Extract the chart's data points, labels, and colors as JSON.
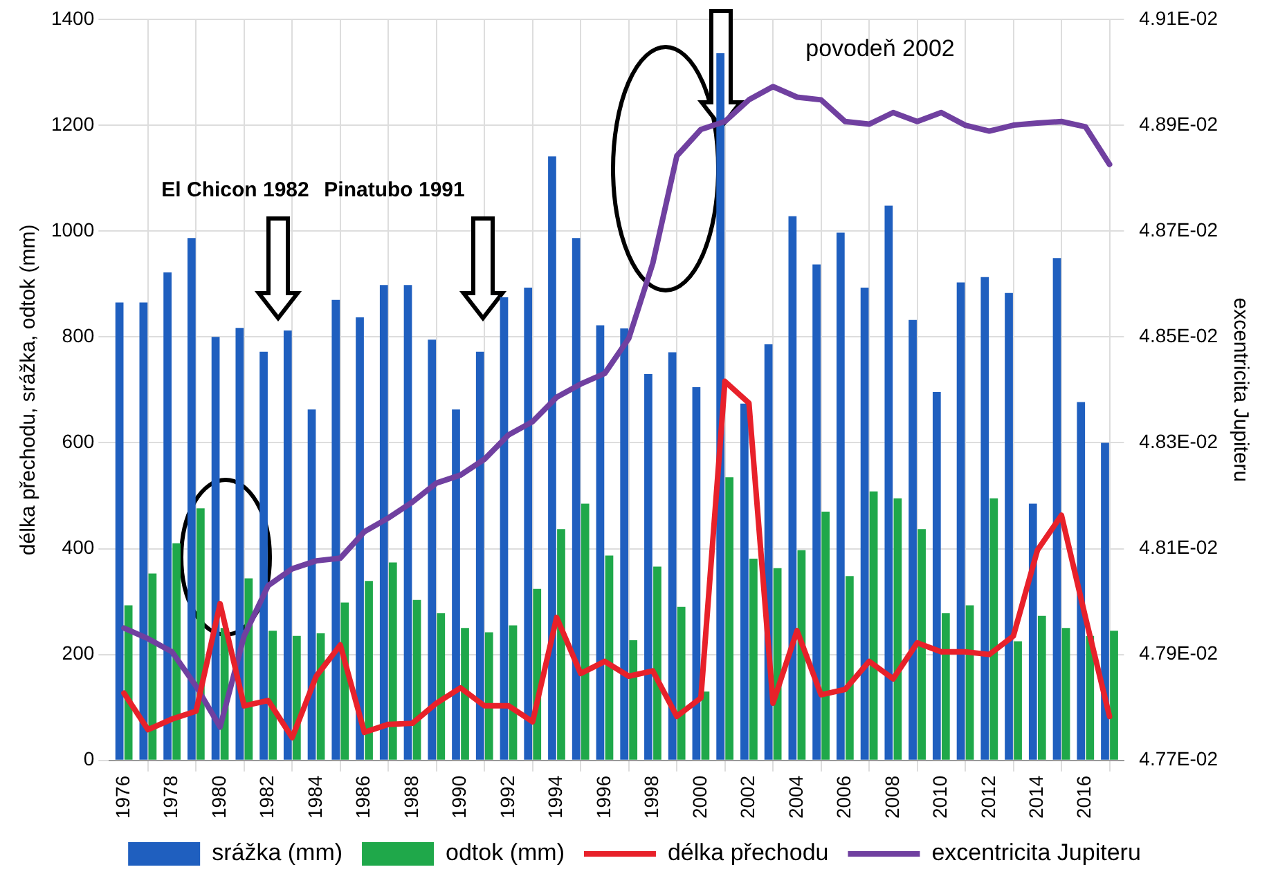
{
  "chart_data": {
    "type": "bar",
    "ylabel": "délka přechodu, srážka, odtok (mm)",
    "y2label": "excentricita Jupiteru",
    "x": [
      1976,
      1977,
      1978,
      1979,
      1980,
      1981,
      1982,
      1983,
      1984,
      1985,
      1986,
      1987,
      1988,
      1989,
      1990,
      1991,
      1992,
      1993,
      1994,
      1995,
      1996,
      1997,
      1998,
      1999,
      2000,
      2001,
      2002,
      2003,
      2004,
      2005,
      2006,
      2007,
      2008,
      2009,
      2010,
      2011,
      2012,
      2013,
      2014,
      2015,
      2016,
      2017
    ],
    "xlim": [
      1975.4,
      2017.6
    ],
    "xticks": [
      1976,
      1978,
      1980,
      1982,
      1984,
      1986,
      1988,
      1990,
      1992,
      1994,
      1996,
      1998,
      2000,
      2002,
      2004,
      2006,
      2008,
      2010,
      2012,
      2014,
      2016
    ],
    "ylim": [
      0,
      1400
    ],
    "yticks": [
      0,
      200,
      400,
      600,
      800,
      1000,
      1200,
      1400
    ],
    "y2lim": [
      0.0477,
      0.0491
    ],
    "y2ticks": [
      {
        "value": 0.0477,
        "label": "4.77E-02"
      },
      {
        "value": 0.0479,
        "label": "4.79E-02"
      },
      {
        "value": 0.0481,
        "label": "4.81E-02"
      },
      {
        "value": 0.0483,
        "label": "4.83E-02"
      },
      {
        "value": 0.0485,
        "label": "4.85E-02"
      },
      {
        "value": 0.0487,
        "label": "4.87E-02"
      },
      {
        "value": 0.0489,
        "label": "4.89E-02"
      },
      {
        "value": 0.0491,
        "label": "4.91E-02"
      }
    ],
    "series": [
      {
        "name": "srážka (mm)",
        "color": "#1f5fbf",
        "values": [
          865,
          865,
          922,
          987,
          800,
          817,
          772,
          812,
          663,
          870,
          837,
          898,
          898,
          795,
          663,
          772,
          875,
          893,
          1141,
          987,
          822,
          816,
          730,
          771,
          705,
          1336,
          674,
          786,
          1028,
          937,
          997,
          893,
          1048,
          832,
          696,
          903,
          913,
          883,
          485,
          949,
          677,
          600
        ]
      },
      {
        "name": "odtok (mm)",
        "color": "#1fa84a",
        "values": [
          293,
          353,
          410,
          476,
          250,
          344,
          245,
          235,
          240,
          298,
          339,
          374,
          303,
          278,
          250,
          242,
          255,
          324,
          437,
          485,
          387,
          227,
          366,
          290,
          130,
          535,
          381,
          363,
          397,
          470,
          348,
          508,
          495,
          437,
          278,
          293,
          495,
          225,
          273,
          250,
          235,
          245
        ]
      },
      {
        "name": "délka přechodu",
        "type": "line",
        "color": "#e8212a",
        "values": [
          127,
          58,
          78,
          93,
          296,
          103,
          113,
          43,
          159,
          218,
          53,
          68,
          70,
          108,
          137,
          103,
          103,
          73,
          270,
          164,
          187,
          159,
          169,
          83,
          118,
          716,
          675,
          108,
          245,
          124,
          134,
          187,
          154,
          222,
          205,
          205,
          200,
          235,
          397,
          463,
          270,
          83
        ]
      },
      {
        "name": "excentricita Jupiteru",
        "type": "line",
        "axis": "y2",
        "color": "#7040a0",
        "values": [
          0.04795,
          0.04793,
          0.047905,
          0.04784,
          0.047763,
          0.047935,
          0.04803,
          0.048062,
          0.048077,
          0.048082,
          0.048132,
          0.048158,
          0.048188,
          0.048224,
          0.048239,
          0.048269,
          0.048315,
          0.04834,
          0.048386,
          0.048411,
          0.048431,
          0.048497,
          0.048639,
          0.048842,
          0.048892,
          0.048907,
          0.048948,
          0.048973,
          0.048953,
          0.048948,
          0.048907,
          0.048902,
          0.048924,
          0.048907,
          0.048924,
          0.0489,
          0.048889,
          0.0489,
          0.048904,
          0.048907,
          0.048897,
          0.048826
        ]
      }
    ],
    "annotations": [
      "El Chicon 1982",
      "Pinatubo 1991",
      "povodeň 2002"
    ],
    "grid": true,
    "legend": "bottom",
    "line_style": "solid",
    "marker": "none"
  }
}
